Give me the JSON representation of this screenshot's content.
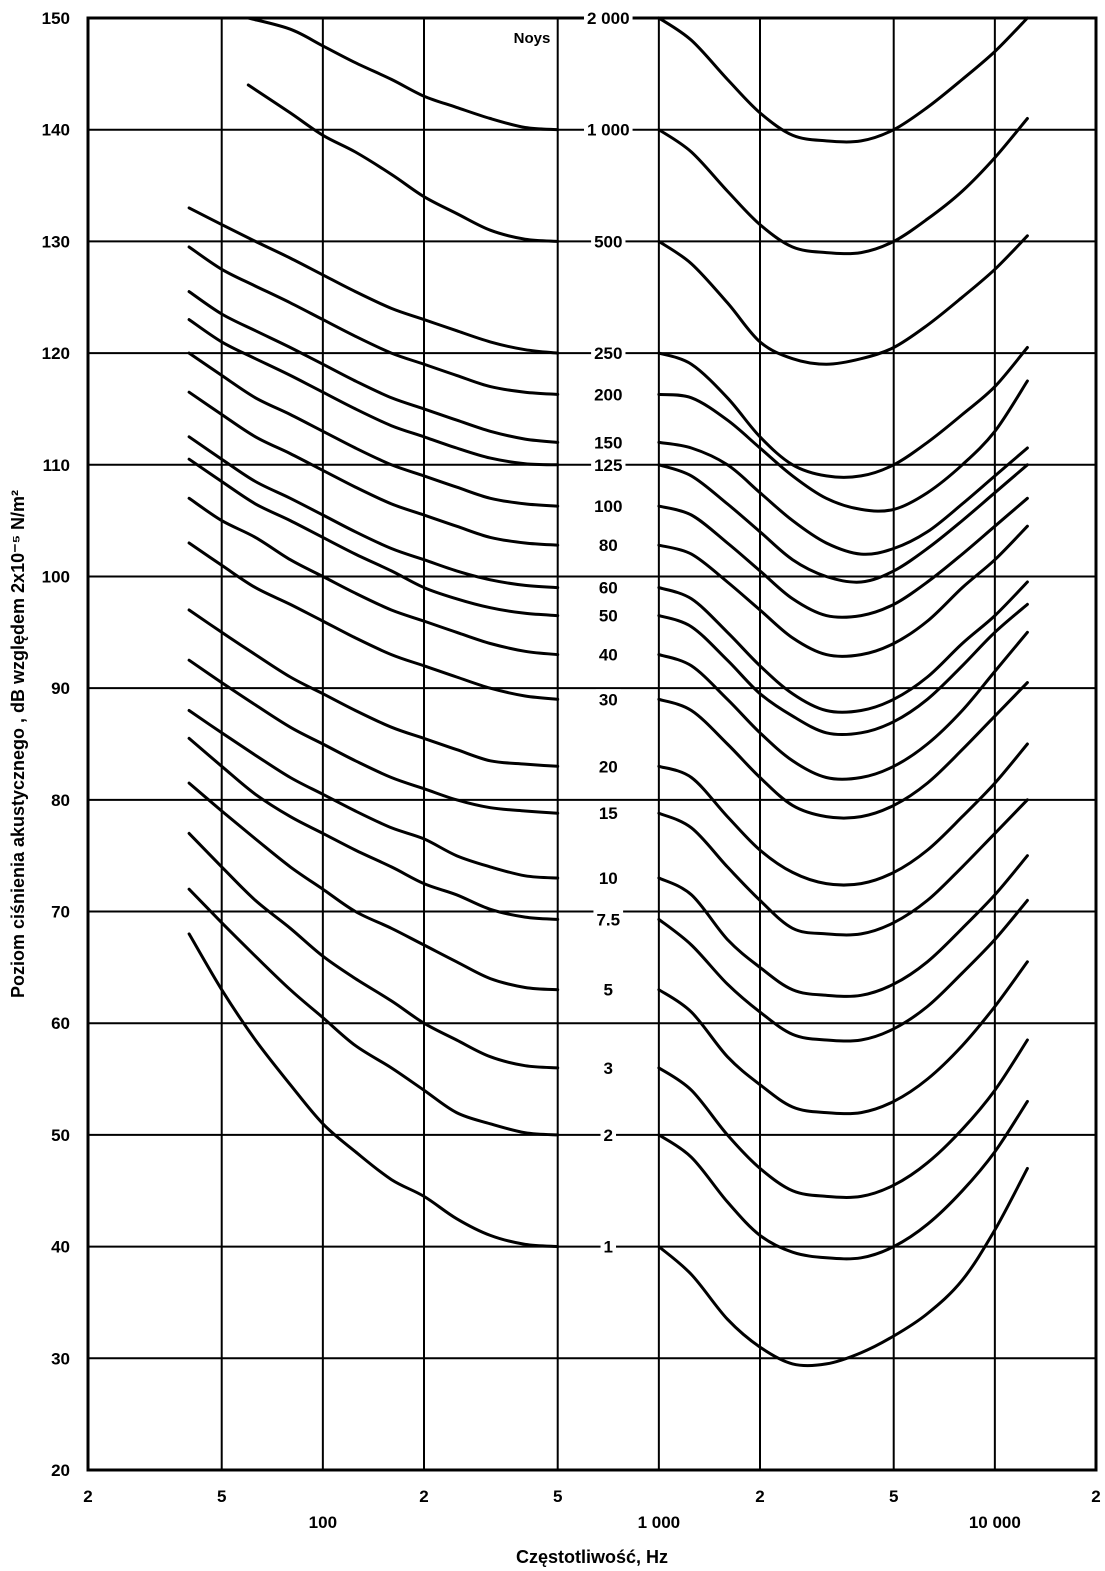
{
  "chart_data": {
    "type": "line",
    "title": "",
    "xlabel": "Częstotliwość, Hz",
    "ylabel": "Poziom  ciśnienia akustycznego ,  dB względem 2x10⁻⁵ N/m²",
    "x_scale": "log",
    "xlim": [
      20,
      20000
    ],
    "ylim": [
      20,
      150
    ],
    "grid": true,
    "x_ticks": [
      {
        "value": 20,
        "label": "2"
      },
      {
        "value": 50,
        "label": "5"
      },
      {
        "value": 100,
        "label": "100"
      },
      {
        "value": 200,
        "label": "2"
      },
      {
        "value": 500,
        "label": "5"
      },
      {
        "value": 1000,
        "label": "1 000"
      },
      {
        "value": 2000,
        "label": "2"
      },
      {
        "value": 5000,
        "label": "5"
      },
      {
        "value": 10000,
        "label": "10 000"
      },
      {
        "value": 20000,
        "label": "2"
      }
    ],
    "y_ticks": [
      20,
      30,
      40,
      50,
      60,
      70,
      80,
      90,
      100,
      110,
      120,
      130,
      140,
      150
    ],
    "unit_label": "Noys",
    "series": [
      {
        "name": "1",
        "low_x": [
          40,
          50,
          63,
          80,
          100,
          125,
          160,
          200,
          250,
          315,
          400,
          500
        ],
        "low_y": [
          68,
          63,
          58.5,
          54.5,
          51,
          48.5,
          46,
          44.5,
          42.5,
          41,
          40.2,
          40
        ],
        "high_x": [
          1000,
          1250,
          1600,
          2000,
          2500,
          3150,
          4000,
          5000,
          6300,
          8000,
          10000,
          12500
        ],
        "high_y": [
          40,
          37.5,
          33.5,
          31,
          29.5,
          29.5,
          30.5,
          32,
          34,
          37,
          41.5,
          47
        ]
      },
      {
        "name": "2",
        "low_x": [
          40,
          50,
          63,
          80,
          100,
          125,
          160,
          200,
          250,
          315,
          400,
          500
        ],
        "low_y": [
          72,
          69,
          66,
          63,
          60.5,
          58,
          56,
          54,
          52,
          51,
          50.2,
          50
        ],
        "high_x": [
          1000,
          1250,
          1600,
          2000,
          2500,
          3150,
          4000,
          5000,
          6300,
          8000,
          10000,
          12500
        ],
        "high_y": [
          50,
          48,
          44,
          41,
          39.5,
          39,
          39,
          40,
          42,
          45,
          48.5,
          53
        ]
      },
      {
        "name": "3",
        "low_x": [
          40,
          50,
          63,
          80,
          100,
          125,
          160,
          200,
          250,
          315,
          400,
          500
        ],
        "low_y": [
          77,
          74,
          71,
          68.5,
          66,
          64,
          62,
          60,
          58.5,
          57,
          56.2,
          56
        ],
        "high_x": [
          1000,
          1250,
          1600,
          2000,
          2500,
          3150,
          4000,
          5000,
          6300,
          8000,
          10000,
          12500
        ],
        "high_y": [
          56,
          54,
          50,
          47,
          45,
          44.5,
          44.5,
          45.5,
          47.5,
          50.5,
          54,
          58.5
        ]
      },
      {
        "name": "5",
        "low_x": [
          40,
          50,
          63,
          80,
          100,
          125,
          160,
          200,
          250,
          315,
          400,
          500
        ],
        "low_y": [
          81.5,
          79,
          76.5,
          74,
          72,
          70,
          68.5,
          67,
          65.5,
          64,
          63.2,
          63
        ],
        "high_x": [
          1000,
          1250,
          1600,
          2000,
          2500,
          3150,
          4000,
          5000,
          6300,
          8000,
          10000,
          12500
        ],
        "high_y": [
          63,
          61,
          57,
          54.5,
          52.5,
          52,
          52,
          53,
          55,
          58,
          61.5,
          65.5
        ]
      },
      {
        "name": "7.5",
        "low_x": [
          40,
          50,
          63,
          80,
          100,
          125,
          160,
          200,
          250,
          315,
          400,
          500
        ],
        "low_y": [
          85.5,
          83,
          80.5,
          78.5,
          77,
          75.5,
          74,
          72.5,
          71.5,
          70.2,
          69.5,
          69.3
        ],
        "high_x": [
          1000,
          1250,
          1600,
          2000,
          2500,
          3150,
          4000,
          5000,
          6300,
          8000,
          10000,
          12500
        ],
        "high_y": [
          69.3,
          67,
          63.5,
          61,
          59,
          58.5,
          58.5,
          59.5,
          61.5,
          64.5,
          67.5,
          71
        ]
      },
      {
        "name": "10",
        "low_x": [
          40,
          50,
          63,
          80,
          100,
          125,
          160,
          200,
          250,
          315,
          400,
          500
        ],
        "low_y": [
          88,
          86,
          84,
          82,
          80.5,
          79,
          77.5,
          76.5,
          75,
          74,
          73.2,
          73
        ],
        "high_x": [
          1000,
          1250,
          1600,
          2000,
          2500,
          3150,
          4000,
          5000,
          6300,
          8000,
          10000,
          12500
        ],
        "high_y": [
          73,
          71.5,
          67.5,
          65,
          63,
          62.5,
          62.5,
          63.5,
          65.5,
          68.5,
          71.5,
          75
        ]
      },
      {
        "name": "15",
        "low_x": [
          40,
          50,
          63,
          80,
          100,
          125,
          160,
          200,
          250,
          315,
          400,
          500
        ],
        "low_y": [
          92.5,
          90.5,
          88.5,
          86.5,
          85,
          83.5,
          82,
          81,
          80,
          79.3,
          79,
          78.8
        ],
        "high_x": [
          1000,
          1250,
          1600,
          2000,
          2500,
          3150,
          4000,
          5000,
          6300,
          8000,
          10000,
          12500
        ],
        "high_y": [
          78.8,
          77.5,
          74,
          71,
          68.5,
          68,
          68,
          69,
          71,
          74,
          77,
          80
        ]
      },
      {
        "name": "20",
        "low_x": [
          40,
          50,
          63,
          80,
          100,
          125,
          160,
          200,
          250,
          315,
          400,
          500
        ],
        "low_y": [
          97,
          95,
          93,
          91,
          89.5,
          88,
          86.5,
          85.5,
          84.5,
          83.5,
          83.2,
          83
        ],
        "high_x": [
          1000,
          1250,
          1600,
          2000,
          2500,
          3150,
          4000,
          5000,
          6300,
          8000,
          10000,
          12500
        ],
        "high_y": [
          83,
          82,
          78.5,
          75.5,
          73.5,
          72.5,
          72.5,
          73.5,
          75.5,
          78.5,
          81.5,
          85
        ]
      },
      {
        "name": "30",
        "low_x": [
          40,
          50,
          63,
          80,
          100,
          125,
          160,
          200,
          250,
          315,
          400,
          500
        ],
        "low_y": [
          103,
          101,
          99,
          97.5,
          96,
          94.5,
          93,
          92,
          91,
          90,
          89.3,
          89
        ],
        "high_x": [
          1000,
          1250,
          1600,
          2000,
          2500,
          3150,
          4000,
          5000,
          6300,
          8000,
          10000,
          12500
        ],
        "high_y": [
          89,
          88,
          85,
          82,
          79.5,
          78.5,
          78.5,
          79.5,
          81.5,
          84.5,
          87.5,
          90.5
        ]
      },
      {
        "name": "40",
        "low_x": [
          40,
          50,
          63,
          80,
          100,
          125,
          160,
          200,
          250,
          315,
          400,
          500
        ],
        "low_y": [
          107,
          105,
          103.5,
          101.5,
          100,
          98.5,
          97,
          96,
          95,
          94,
          93.3,
          93
        ],
        "high_x": [
          1000,
          1250,
          1600,
          2000,
          2500,
          3150,
          4000,
          5000,
          6300,
          8000,
          10000,
          12500
        ],
        "high_y": [
          93,
          92,
          89,
          86,
          83.5,
          82,
          82,
          83,
          85,
          88,
          91.5,
          95
        ]
      },
      {
        "name": "50",
        "low_x": [
          40,
          50,
          63,
          80,
          100,
          125,
          160,
          200,
          250,
          315,
          400,
          500
        ],
        "low_y": [
          110.5,
          108.5,
          106.5,
          105,
          103.5,
          102,
          100.5,
          99,
          98,
          97.2,
          96.7,
          96.5
        ],
        "high_x": [
          1000,
          1250,
          1600,
          2000,
          2500,
          3150,
          4000,
          5000,
          6300,
          8000,
          10000,
          12500
        ],
        "high_y": [
          96.5,
          95.5,
          92.5,
          89.5,
          87.5,
          86,
          86,
          87,
          89,
          92,
          95,
          97.5
        ]
      },
      {
        "name": "60",
        "low_x": [
          40,
          50,
          63,
          80,
          100,
          125,
          160,
          200,
          250,
          315,
          400,
          500
        ],
        "low_y": [
          112.5,
          110.5,
          108.5,
          107,
          105.5,
          104,
          102.5,
          101.5,
          100.5,
          99.7,
          99.2,
          99
        ],
        "high_x": [
          1000,
          1250,
          1600,
          2000,
          2500,
          3150,
          4000,
          5000,
          6300,
          8000,
          10000,
          12500
        ],
        "high_y": [
          99,
          98,
          95,
          92,
          89.5,
          88,
          88,
          89,
          91,
          94,
          96.5,
          99.5
        ]
      },
      {
        "name": "80",
        "low_x": [
          40,
          50,
          63,
          80,
          100,
          125,
          160,
          200,
          250,
          315,
          400,
          500
        ],
        "low_y": [
          116.5,
          114.5,
          112.5,
          111,
          109.5,
          108,
          106.5,
          105.5,
          104.5,
          103.5,
          103,
          102.8
        ],
        "high_x": [
          1000,
          1250,
          1600,
          2000,
          2500,
          3150,
          4000,
          5000,
          6300,
          8000,
          10000,
          12500
        ],
        "high_y": [
          102.8,
          102,
          99.5,
          97,
          94.5,
          93,
          93,
          94,
          96,
          99,
          101.5,
          104.5
        ]
      },
      {
        "name": "100",
        "low_x": [
          40,
          50,
          63,
          80,
          100,
          125,
          160,
          200,
          250,
          315,
          400,
          500
        ],
        "low_y": [
          120,
          118,
          116,
          114.5,
          113,
          111.5,
          110,
          109,
          108,
          107,
          106.5,
          106.3
        ],
        "high_x": [
          1000,
          1250,
          1600,
          2000,
          2500,
          3150,
          4000,
          5000,
          6300,
          8000,
          10000,
          12500
        ],
        "high_y": [
          106.3,
          105.5,
          103,
          100.5,
          98,
          96.5,
          96.5,
          97.5,
          99.5,
          102,
          104.5,
          107
        ]
      },
      {
        "name": "125",
        "low_x": [
          40,
          50,
          63,
          80,
          100,
          125,
          160,
          200,
          250,
          315,
          400,
          500
        ],
        "low_y": [
          123,
          121,
          119.5,
          118,
          116.5,
          115,
          113.5,
          112.5,
          111.5,
          110.6,
          110.1,
          110
        ],
        "high_x": [
          1000,
          1250,
          1600,
          2000,
          2500,
          3150,
          4000,
          5000,
          6300,
          8000,
          10000,
          12500
        ],
        "high_y": [
          110,
          109,
          106.5,
          104,
          101.5,
          100,
          99.5,
          100.5,
          102.5,
          105,
          107.5,
          110
        ]
      },
      {
        "name": "150",
        "low_x": [
          40,
          50,
          63,
          80,
          100,
          125,
          160,
          200,
          250,
          315,
          400,
          500
        ],
        "low_y": [
          125.5,
          123.5,
          122,
          120.5,
          119,
          117.5,
          116,
          115,
          114,
          113,
          112.3,
          112
        ],
        "high_x": [
          1000,
          1250,
          1600,
          2000,
          2500,
          3150,
          4000,
          5000,
          6300,
          8000,
          10000,
          12500
        ],
        "high_y": [
          112,
          111.5,
          110,
          107.5,
          105,
          103,
          102,
          102.5,
          104,
          106.5,
          109,
          111.5
        ]
      },
      {
        "name": "200",
        "low_x": [
          40,
          50,
          63,
          80,
          100,
          125,
          160,
          200,
          250,
          315,
          400,
          500
        ],
        "low_y": [
          129.5,
          127.5,
          126,
          124.5,
          123,
          121.5,
          120,
          119,
          118,
          117,
          116.5,
          116.3
        ],
        "high_x": [
          1000,
          1250,
          1600,
          2000,
          2500,
          3150,
          4000,
          5000,
          6300,
          8000,
          10000,
          12500
        ],
        "high_y": [
          116.3,
          116,
          114,
          111.5,
          109,
          107,
          106,
          106,
          107.5,
          110,
          113,
          117.5
        ]
      },
      {
        "name": "250",
        "low_x": [
          40,
          50,
          63,
          80,
          100,
          125,
          160,
          200,
          250,
          315,
          400,
          500
        ],
        "low_y": [
          133,
          131.5,
          130,
          128.5,
          127,
          125.5,
          124,
          123,
          122,
          121,
          120.3,
          120
        ],
        "high_x": [
          1000,
          1250,
          1600,
          2000,
          2500,
          3150,
          4000,
          5000,
          6300,
          8000,
          10000,
          12500
        ],
        "high_y": [
          120,
          119,
          116,
          112.5,
          110,
          109,
          109,
          110,
          112,
          114.5,
          117,
          120.5
        ]
      },
      {
        "name": "500",
        "low_x": [
          60,
          80,
          100,
          125,
          160,
          200,
          250,
          315,
          400,
          500
        ],
        "low_y": [
          144,
          141.5,
          139.5,
          138,
          136,
          134,
          132.5,
          131,
          130.2,
          130
        ],
        "high_x": [
          1000,
          1250,
          1600,
          2000,
          2500,
          3150,
          4000,
          5000,
          6300,
          8000,
          10000,
          12500
        ],
        "high_y": [
          130,
          128,
          124.5,
          121,
          119.5,
          119,
          119.5,
          120.5,
          122.5,
          125,
          127.5,
          130.5
        ]
      },
      {
        "name": "1 000",
        "low_x": [
          60,
          80,
          100,
          125,
          160,
          200,
          250,
          315,
          400,
          500
        ],
        "low_y": [
          150,
          149,
          147.5,
          146,
          144.5,
          143,
          142,
          141,
          140.2,
          140
        ],
        "high_x": [
          1000,
          1250,
          1600,
          2000,
          2500,
          3150,
          4000,
          5000,
          6300,
          8000,
          10000,
          12500
        ],
        "high_y": [
          140,
          138,
          134.5,
          131.5,
          129.5,
          129,
          129,
          130,
          132,
          134.5,
          137.5,
          141
        ]
      },
      {
        "name": "2 000",
        "low_x": [],
        "low_y": [],
        "high_x": [
          1000,
          1250,
          1600,
          2000,
          2500,
          3150,
          4000,
          5000,
          6300,
          8000,
          10000,
          12500
        ],
        "high_y": [
          150,
          148,
          144.5,
          141.5,
          139.5,
          139,
          139,
          140,
          142,
          144.5,
          147,
          150
        ]
      }
    ]
  }
}
